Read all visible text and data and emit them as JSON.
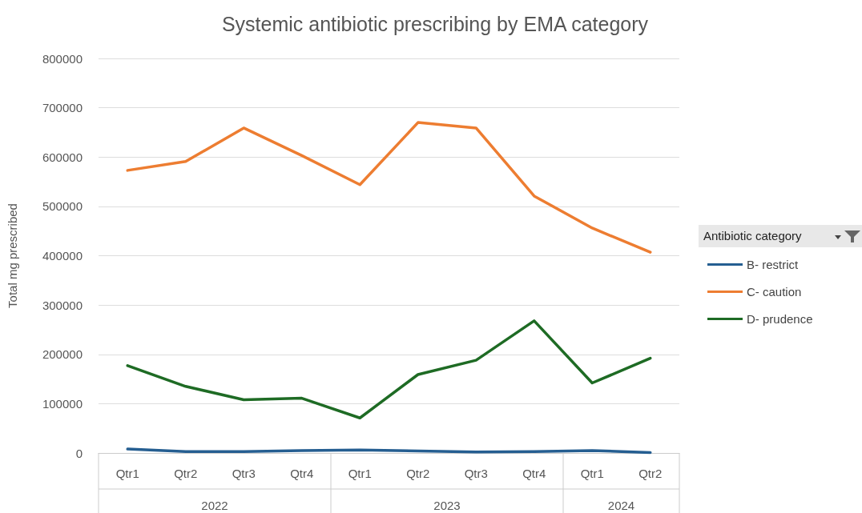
{
  "chart_data": {
    "type": "line",
    "title": "Systemic antibiotic prescribing by EMA category",
    "ylabel": "Total mg prescribed",
    "legend_title": "Antibiotic category",
    "categories": [
      "Qtr1",
      "Qtr2",
      "Qtr3",
      "Qtr4",
      "Qtr1",
      "Qtr2",
      "Qtr3",
      "Qtr4",
      "Qtr1",
      "Qtr2"
    ],
    "annotations": [
      "2022",
      "2023",
      "2024"
    ],
    "series": [
      {
        "name": "B- restrict",
        "color": "#255e91",
        "values": [
          8000,
          3000,
          3000,
          5000,
          6000,
          4000,
          2000,
          3000,
          5000,
          1000
        ]
      },
      {
        "name": "C- caution",
        "color": "#ed7d31",
        "values": [
          573000,
          591000,
          659000,
          603000,
          544000,
          670000,
          659000,
          521000,
          456000,
          407000
        ]
      },
      {
        "name": "D- prudence",
        "color": "#1e6b24",
        "values": [
          177000,
          135000,
          108000,
          111000,
          71000,
          159000,
          188000,
          268000,
          142000,
          192000
        ]
      }
    ],
    "ylim": [
      0,
      800000
    ],
    "yticks": [
      0,
      100000,
      200000,
      300000,
      400000,
      500000,
      600000,
      700000,
      800000
    ],
    "grid": "y",
    "legend": "right",
    "marker": "none",
    "line_style": "solid"
  }
}
